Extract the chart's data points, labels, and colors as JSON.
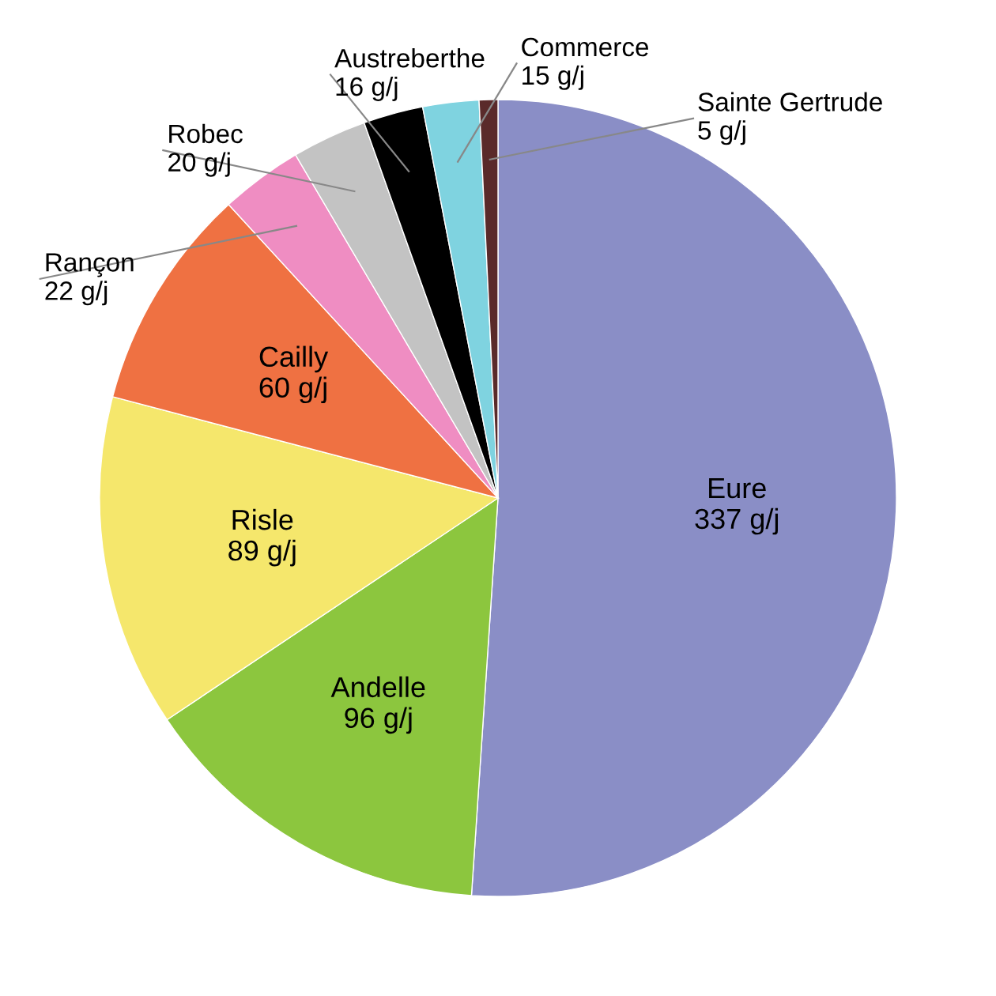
{
  "chart_data": {
    "type": "pie",
    "categories": [
      "Eure",
      "Andelle",
      "Risle",
      "Cailly",
      "Rançon",
      "Robec",
      "Austreberthe",
      "Commerce",
      "Sainte Gertrude"
    ],
    "values": [
      337,
      96,
      89,
      60,
      22,
      20,
      16,
      15,
      5
    ],
    "value_labels": [
      "337 g/j",
      "96 g/j",
      "89 g/j",
      "60 g/j",
      "22 g/j",
      "20 g/j",
      "16 g/j",
      "15 g/j",
      "5 g/j"
    ],
    "colors": [
      "#8a8ec6",
      "#8cc63e",
      "#f5e76c",
      "#ef7142",
      "#ef8dc2",
      "#c3c3c3",
      "#000000",
      "#7fd3e0",
      "#5a2a2a"
    ],
    "legend": false
  }
}
